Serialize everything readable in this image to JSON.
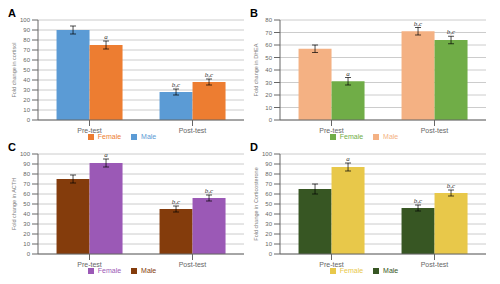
{
  "chart_data": [
    {
      "type": "bar",
      "title": "A",
      "ylabel": "Fold change in cortisol",
      "categories": [
        "Pre-test",
        "Post-test"
      ],
      "series": [
        {
          "name": "Male",
          "color": "#5B9BD5",
          "values": [
            90,
            28
          ],
          "errors": [
            4,
            3
          ]
        },
        {
          "name": "Female",
          "color": "#ED7D31",
          "values": [
            75,
            38
          ],
          "errors": [
            4,
            3
          ]
        }
      ],
      "annotations": [
        {
          "series": "Female",
          "category": "Pre-test",
          "text": "a"
        },
        {
          "series": "Male",
          "category": "Post-test",
          "text": "b,c"
        },
        {
          "series": "Female",
          "category": "Post-test",
          "text": "b,c"
        }
      ],
      "ylim": [
        0,
        100
      ],
      "yticks": [
        0,
        10,
        20,
        30,
        40,
        50,
        60,
        70,
        80,
        90,
        100
      ],
      "grid": true,
      "legend": "bottom"
    },
    {
      "type": "bar",
      "title": "B",
      "ylabel": "Fold change in DHEA",
      "categories": [
        "Pre-test",
        "Post-test"
      ],
      "series": [
        {
          "name": "Male",
          "color": "#F4B183",
          "values": [
            57,
            71
          ],
          "errors": [
            3,
            3
          ]
        },
        {
          "name": "Female",
          "color": "#70AD47",
          "values": [
            31,
            64
          ],
          "errors": [
            3,
            3
          ]
        }
      ],
      "annotations": [
        {
          "series": "Female",
          "category": "Pre-test",
          "text": "a"
        },
        {
          "series": "Male",
          "category": "Post-test",
          "text": "b,c"
        },
        {
          "series": "Female",
          "category": "Post-test",
          "text": "b,c"
        }
      ],
      "ylim": [
        0,
        80
      ],
      "yticks": [
        0,
        10,
        20,
        30,
        40,
        50,
        60,
        70,
        80
      ],
      "grid": true,
      "legend": "bottom"
    },
    {
      "type": "bar",
      "title": "C",
      "ylabel": "Fold change in ACTH",
      "categories": [
        "Pre-test",
        "Post-test"
      ],
      "series": [
        {
          "name": "Male",
          "color": "#843C0C",
          "values": [
            75,
            45
          ],
          "errors": [
            4,
            3
          ]
        },
        {
          "name": "Female",
          "color": "#9B59B6",
          "values": [
            91,
            56
          ],
          "errors": [
            4,
            3
          ]
        }
      ],
      "annotations": [
        {
          "series": "Female",
          "category": "Pre-test",
          "text": "a"
        },
        {
          "series": "Male",
          "category": "Post-test",
          "text": "b,c"
        },
        {
          "series": "Female",
          "category": "Post-test",
          "text": "b,c"
        }
      ],
      "ylim": [
        0,
        100
      ],
      "yticks": [
        0,
        10,
        20,
        30,
        40,
        50,
        60,
        70,
        80,
        90,
        100
      ],
      "grid": true,
      "legend": "bottom"
    },
    {
      "type": "bar",
      "title": "D",
      "ylabel": "Fold change in Corticosterone",
      "categories": [
        "Pre-test",
        "Post-test"
      ],
      "series": [
        {
          "name": "Male",
          "color": "#375623",
          "values": [
            65,
            46
          ],
          "errors": [
            5,
            3
          ]
        },
        {
          "name": "Female",
          "color": "#E8C84A",
          "values": [
            87,
            61
          ],
          "errors": [
            4,
            3
          ]
        }
      ],
      "annotations": [
        {
          "series": "Female",
          "category": "Pre-test",
          "text": "a"
        },
        {
          "series": "Male",
          "category": "Post-test",
          "text": "b,c"
        },
        {
          "series": "Female",
          "category": "Post-test",
          "text": "b,c"
        }
      ],
      "ylim": [
        0,
        100
      ],
      "yticks": [
        0,
        10,
        20,
        30,
        40,
        50,
        60,
        70,
        80,
        90,
        100
      ],
      "grid": true,
      "legend": "bottom"
    }
  ]
}
